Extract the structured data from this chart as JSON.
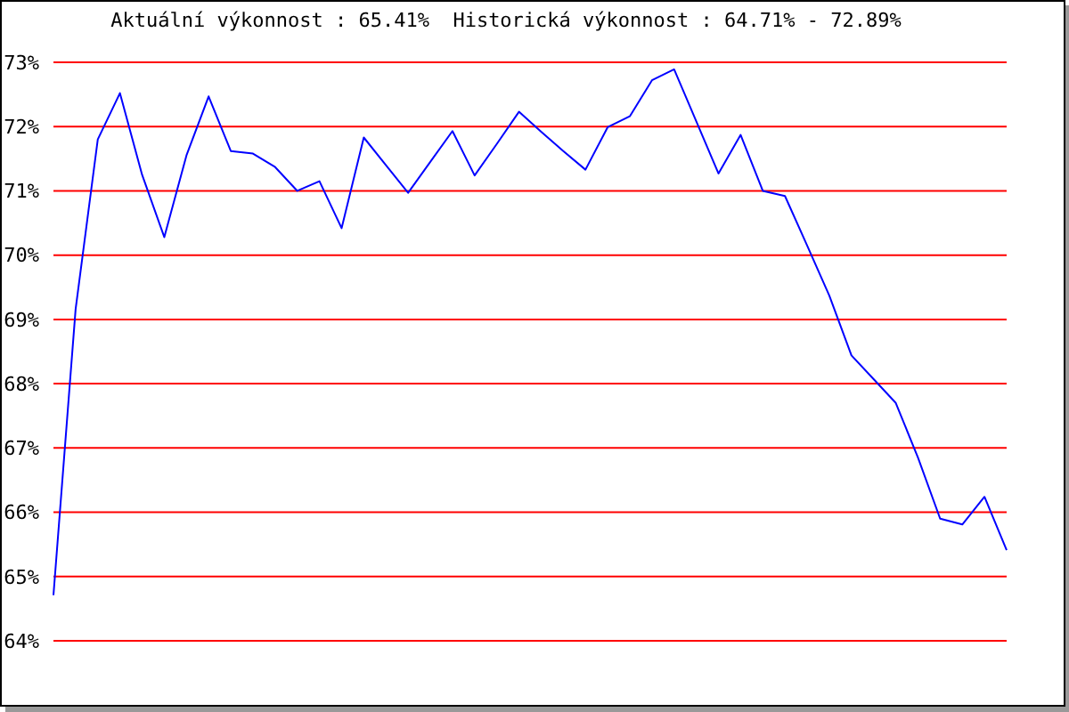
{
  "chart_data": {
    "type": "line",
    "title": "Aktuální výkonnost : 65.41%  Historická výkonnost : 64.71% - 72.89%",
    "categories": [
      null,
      null,
      null,
      null,
      null,
      null,
      null,
      null,
      null,
      null,
      null,
      null,
      null,
      null,
      null,
      null,
      null,
      null,
      null,
      null,
      null,
      null,
      null,
      null,
      null,
      null,
      null,
      null,
      null,
      null,
      null,
      null,
      null,
      null,
      null,
      null,
      null,
      null,
      null,
      null,
      null,
      null,
      null,
      null
    ],
    "series": [
      {
        "color": "#0000ff",
        "values": [
          64.71,
          69.16,
          71.8,
          72.52,
          71.25,
          70.28,
          71.55,
          72.47,
          71.62,
          71.58,
          71.37,
          71.0,
          71.15,
          70.42,
          71.83,
          71.4,
          70.97,
          71.45,
          71.93,
          71.24,
          71.73,
          72.23,
          71.92,
          71.62,
          71.33,
          71.99,
          72.16,
          72.72,
          72.89,
          72.08,
          71.27,
          71.87,
          71.0,
          70.92,
          70.15,
          69.37,
          68.44,
          68.07,
          67.7,
          66.85,
          65.9,
          65.81,
          66.24,
          65.41
        ]
      }
    ],
    "ylim": [
      64,
      73
    ],
    "yticks": [
      {
        "value": 64,
        "label": "64%"
      },
      {
        "value": 65,
        "label": "65%"
      },
      {
        "value": 66,
        "label": "66%"
      },
      {
        "value": 67,
        "label": "67%"
      },
      {
        "value": 68,
        "label": "68%"
      },
      {
        "value": 69,
        "label": "69%"
      },
      {
        "value": 70,
        "label": "70%"
      },
      {
        "value": 71,
        "label": "71%"
      },
      {
        "value": 72,
        "label": "72%"
      },
      {
        "value": 73,
        "label": "73%"
      }
    ],
    "tick_labels": "y",
    "grid": "y",
    "legend": false,
    "marker": "none",
    "line_style": "solid"
  }
}
